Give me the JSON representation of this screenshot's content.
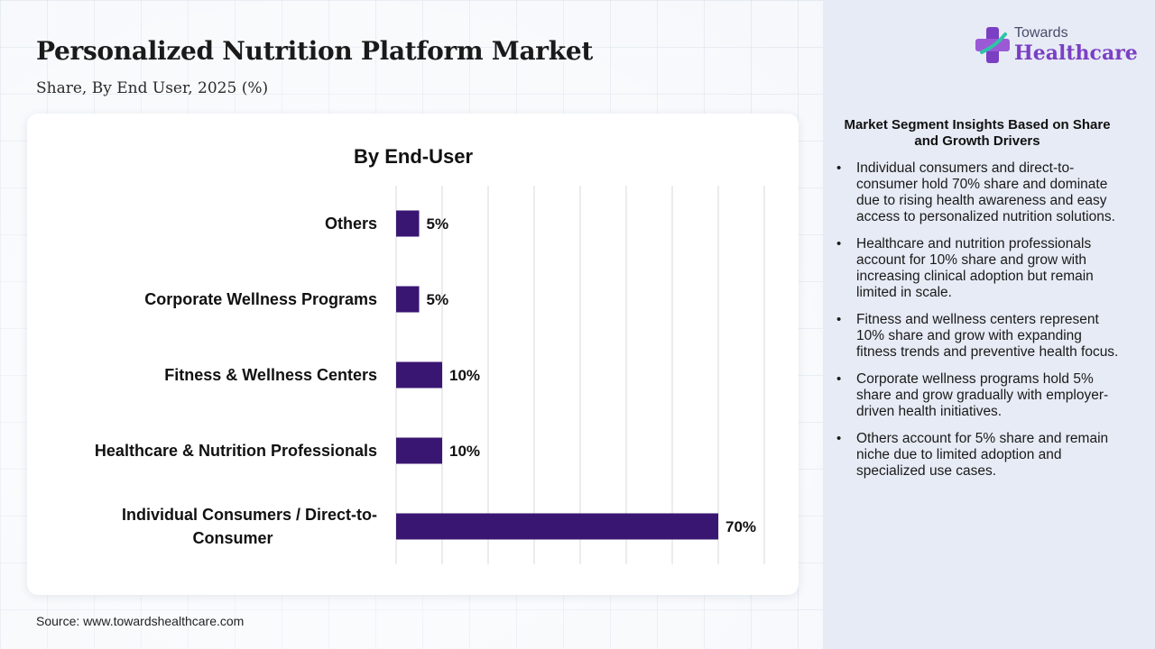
{
  "header": {
    "title": "Personalized Nutrition Platform Market",
    "subtitle": "Share, By End User, 2025 (%)"
  },
  "logo": {
    "line1": "Towards",
    "line2": "Healthcare",
    "icon": "medical-cross-icon"
  },
  "chart_data": {
    "type": "bar",
    "orientation": "horizontal",
    "title": "By End-User",
    "categories": [
      "Others",
      "Corporate Wellness Programs",
      "Fitness & Wellness Centers",
      "Healthcare & Nutrition Professionals",
      "Individual Consumers / Direct-to-Consumer"
    ],
    "category_lines": [
      [
        "Others"
      ],
      [
        "Corporate Wellness Programs"
      ],
      [
        "Fitness & Wellness Centers"
      ],
      [
        "Healthcare & Nutrition Professionals"
      ],
      [
        "Individual Consumers / Direct-to-",
        "Consumer"
      ]
    ],
    "values": [
      5,
      5,
      10,
      10,
      70
    ],
    "value_labels": [
      "5%",
      "5%",
      "10%",
      "10%",
      "70%"
    ],
    "xlim": [
      0,
      80
    ],
    "grid": true,
    "bar_color": "#3a1673"
  },
  "insights": {
    "title": "Market Segment Insights Based on Share and Growth Drivers",
    "bullet": "•",
    "items": [
      "Individual consumers and direct-to-consumer hold 70% share and dominate due to rising health awareness and easy access to personalized nutrition solutions.",
      "Healthcare and nutrition professionals account for 10% share and grow with increasing clinical adoption but remain limited in scale.",
      "Fitness and wellness centers represent 10% share and grow with expanding fitness trends and preventive health focus.",
      "Corporate wellness programs hold 5% share and grow gradually with employer-driven health initiatives.",
      "Others account for 5% share and remain niche due to limited adoption and specialized use cases."
    ]
  },
  "source": "Source: www.towardshealthcare.com"
}
